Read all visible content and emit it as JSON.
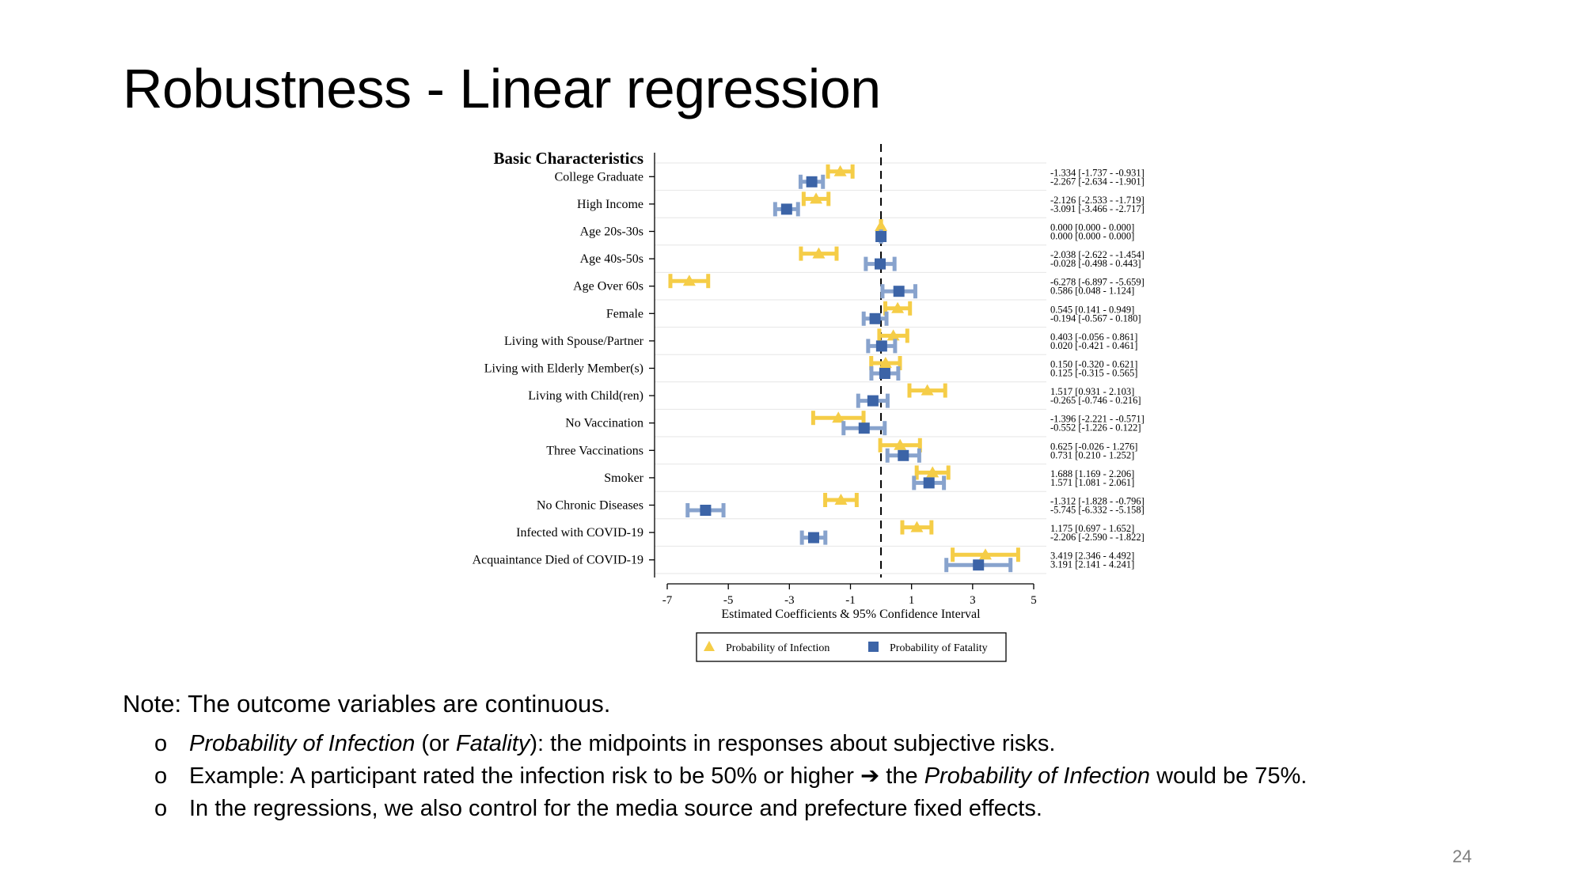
{
  "slide": {
    "title": "Robustness - Linear regression",
    "page_number": "24",
    "note": "Note: The outcome variables are continuous.",
    "bullet_marker": "o",
    "bullets": [
      {
        "parts": [
          {
            "t": "Probability of Infection",
            "i": true
          },
          {
            "t": " (or ",
            "i": false
          },
          {
            "t": "Fatality",
            "i": true
          },
          {
            "t": "): the midpoints in responses about subjective risks.",
            "i": false
          }
        ]
      },
      {
        "parts": [
          {
            "t": "Example: A participant rated the infection risk to be 50% or higher ",
            "i": false
          },
          {
            "t": "➔",
            "i": false
          },
          {
            "t": " the ",
            "i": false
          },
          {
            "t": "Probability of Infection",
            "i": true
          },
          {
            "t": " would be 75%.",
            "i": false
          }
        ]
      },
      {
        "parts": [
          {
            "t": "In the regressions, we also control for the media source and prefecture fixed effects.",
            "i": false
          }
        ]
      }
    ]
  },
  "chart_data": {
    "type": "scatter",
    "subtype": "coefficient-plot with 95% confidence intervals",
    "group_label": "Basic Characteristics",
    "xlabel": "Estimated Coefficients & 95% Confidence Interval",
    "xlim": [
      -7,
      5
    ],
    "xticks": [
      -7,
      -5,
      -3,
      -1,
      1,
      3,
      5
    ],
    "reference_line_x": 0,
    "legend_position": "bottom-center",
    "colors": {
      "infection": "#f5cd47",
      "infection_ci": "#f5cd47",
      "fatality": "#3c64a7",
      "fatality_ci": "#88a3cd"
    },
    "categories": [
      "College Graduate",
      "High Income",
      "Age 20s-30s",
      "Age 40s-50s",
      "Age Over 60s",
      "Female",
      "Living with Spouse/Partner",
      "Living with Elderly Member(s)",
      "Living with Child(ren)",
      "No Vaccination",
      "Three Vaccinations",
      "Smoker",
      "No Chronic Diseases",
      "Infected with COVID-19",
      "Acquaintance Died of COVID-19"
    ],
    "series": [
      {
        "name": "Probability of Infection",
        "marker": "triangle",
        "estimates": [
          -1.334,
          -2.126,
          0.0,
          -2.038,
          -6.278,
          0.545,
          0.403,
          0.15,
          1.517,
          -1.396,
          0.625,
          1.688,
          -1.312,
          1.175,
          3.419
        ],
        "ci_low": [
          -1.737,
          -2.533,
          0.0,
          -2.622,
          -6.897,
          0.141,
          -0.056,
          -0.32,
          0.931,
          -2.221,
          -0.026,
          1.169,
          -1.828,
          0.697,
          2.346
        ],
        "ci_high": [
          -0.931,
          -1.719,
          0.0,
          -1.454,
          -5.659,
          0.949,
          0.861,
          0.621,
          2.103,
          -0.571,
          1.276,
          2.206,
          -0.796,
          1.652,
          4.492
        ],
        "labels": [
          "-1.334  [-1.737 - -0.931]",
          "-2.126  [-2.533 - -1.719]",
          "0.000  [0.000 - 0.000]",
          "-2.038  [-2.622 - -1.454]",
          "-6.278  [-6.897 - -5.659]",
          "0.545  [0.141 - 0.949]",
          "0.403  [-0.056 - 0.861]",
          "0.150  [-0.320 - 0.621]",
          "1.517  [0.931 - 2.103]",
          "-1.396  [-2.221 - -0.571]",
          "0.625  [-0.026 - 1.276]",
          "1.688  [1.169 - 2.206]",
          "-1.312  [-1.828 - -0.796]",
          "1.175  [0.697 - 1.652]",
          "3.419  [2.346 - 4.492]"
        ]
      },
      {
        "name": "Probability of Fatality",
        "marker": "square",
        "estimates": [
          -2.267,
          -3.091,
          0.0,
          -0.028,
          0.586,
          -0.194,
          0.02,
          0.125,
          -0.265,
          -0.552,
          0.731,
          1.571,
          -5.745,
          -2.206,
          3.191
        ],
        "ci_low": [
          -2.634,
          -3.466,
          0.0,
          -0.498,
          0.048,
          -0.567,
          -0.421,
          -0.315,
          -0.746,
          -1.226,
          0.21,
          1.081,
          -6.332,
          -2.59,
          2.141
        ],
        "ci_high": [
          -1.901,
          -2.717,
          0.0,
          0.443,
          1.124,
          0.18,
          0.461,
          0.565,
          0.216,
          0.122,
          1.252,
          2.061,
          -5.158,
          -1.822,
          4.241
        ],
        "labels": [
          "-2.267  [-2.634 - -1.901]",
          "-3.091  [-3.466 - -2.717]",
          "0.000  [0.000 - 0.000]",
          "-0.028  [-0.498 - 0.443]",
          "0.586  [0.048 - 1.124]",
          "-0.194  [-0.567 - 0.180]",
          "0.020  [-0.421 - 0.461]",
          "0.125  [-0.315 - 0.565]",
          "-0.265  [-0.746 - 0.216]",
          "-0.552  [-1.226 - 0.122]",
          "0.731  [0.210 - 1.252]",
          "1.571  [1.081 - 2.061]",
          "-5.745  [-6.332 - -5.158]",
          "-2.206  [-2.590 - -1.822]",
          "3.191  [2.141 - 4.241]"
        ]
      }
    ]
  }
}
